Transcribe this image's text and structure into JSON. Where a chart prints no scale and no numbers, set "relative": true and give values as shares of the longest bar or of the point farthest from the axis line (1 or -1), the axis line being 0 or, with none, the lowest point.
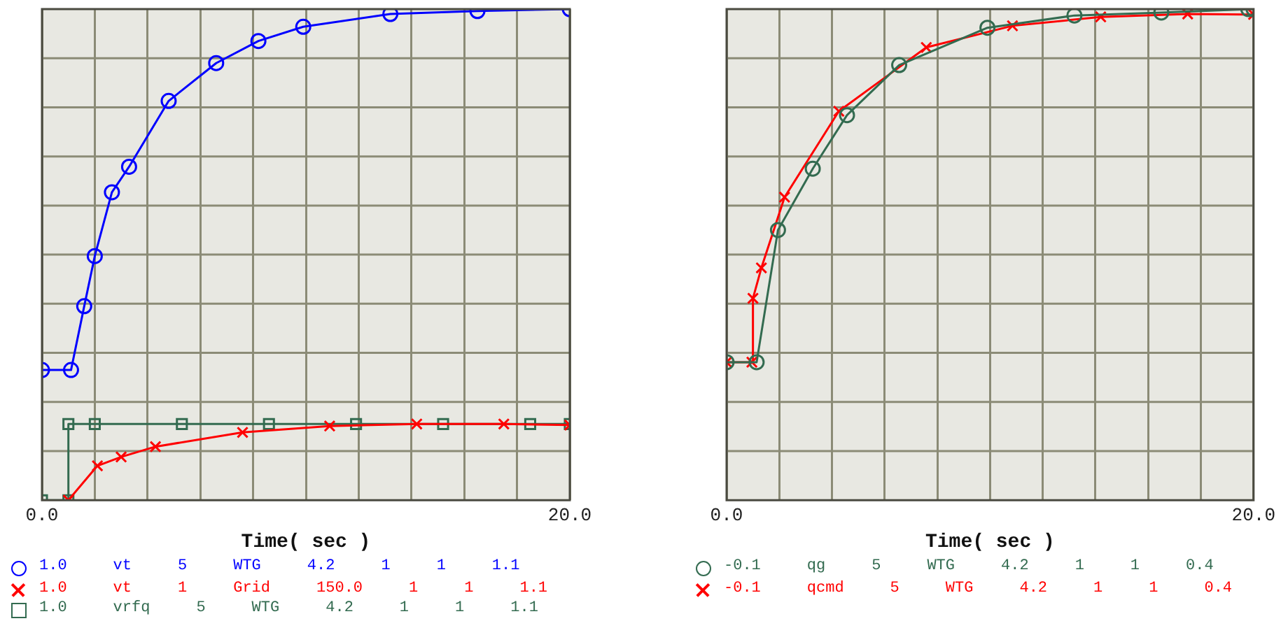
{
  "chart_data": [
    {
      "type": "line",
      "xlabel": "Time( sec )",
      "xlim": [
        0,
        20
      ],
      "xticks": [
        {
          "value": 0,
          "label": "0.0"
        },
        {
          "value": 2,
          "label": null
        },
        {
          "value": 4,
          "label": null
        },
        {
          "value": 6,
          "label": null
        },
        {
          "value": 8,
          "label": null
        },
        {
          "value": 10,
          "label": null
        },
        {
          "value": 12,
          "label": null
        },
        {
          "value": 14,
          "label": null
        },
        {
          "value": 16,
          "label": null
        },
        {
          "value": 18,
          "label": null
        },
        {
          "value": 20,
          "label": "20.0"
        }
      ],
      "relative": true,
      "grid": true,
      "legend": "bottom",
      "series": [
        {
          "name": "1.0 vt 5 WTG 4.2 1 1 1.1",
          "color": "#0000ff",
          "marker": "circle",
          "x": [
            0,
            1.1,
            1.6,
            2.0,
            2.65,
            3.3,
            4.8,
            6.6,
            8.2,
            9.9,
            13.2,
            16.5,
            20
          ],
          "values": [
            0.265,
            0.265,
            0.395,
            0.497,
            0.627,
            0.679,
            0.813,
            0.89,
            0.935,
            0.964,
            0.99,
            0.996,
            1.0
          ]
        },
        {
          "name": "1.0 vt 1 Grid 150.0 1 1 1.1",
          "color": "#ff0000",
          "marker": "cross",
          "x": [
            1.0,
            2.1,
            3.0,
            4.3,
            7.6,
            10.9,
            14.2,
            17.5,
            20
          ],
          "values": [
            0,
            0.07,
            0.088,
            0.109,
            0.138,
            0.151,
            0.155,
            0.155,
            0.153
          ]
        },
        {
          "name": "1.0 vrfq 5 WTG 4.2 1 1 1.1",
          "color": "#336b50",
          "marker": "square",
          "x": [
            0,
            1.0,
            1.0,
            2.0,
            5.3,
            8.6,
            11.9,
            15.2,
            18.5,
            20
          ],
          "values": [
            0,
            0,
            0.155,
            0.155,
            0.155,
            0.155,
            0.155,
            0.155,
            0.155,
            0.155
          ]
        }
      ]
    },
    {
      "type": "line",
      "xlabel": "Time( sec )",
      "xlim": [
        0,
        20
      ],
      "xticks": [
        {
          "value": 0,
          "label": "0.0"
        },
        {
          "value": 2,
          "label": null
        },
        {
          "value": 4,
          "label": null
        },
        {
          "value": 6,
          "label": null
        },
        {
          "value": 8,
          "label": null
        },
        {
          "value": 10,
          "label": null
        },
        {
          "value": 12,
          "label": null
        },
        {
          "value": 14,
          "label": null
        },
        {
          "value": 16,
          "label": null
        },
        {
          "value": 18,
          "label": null
        },
        {
          "value": 20,
          "label": "20.0"
        }
      ],
      "relative": true,
      "grid": true,
      "legend": "bottom",
      "series": [
        {
          "name": "-0.1 qg 5 WTG 4.2 1 1 0.4",
          "color": "#336b50",
          "marker": "circle",
          "x": [
            0,
            1.14,
            1.95,
            3.27,
            4.57,
            6.55,
            9.9,
            13.2,
            16.5,
            19.8,
            20
          ],
          "values": [
            0.281,
            0.281,
            0.55,
            0.675,
            0.784,
            0.886,
            0.962,
            0.987,
            0.993,
            1.0,
            1.0
          ]
        },
        {
          "name": "-0.1 qcmd 5 WTG 4.2 1 1 0.4",
          "color": "#ff0000",
          "marker": "cross",
          "x": [
            0,
            0.96,
            1.0,
            1.32,
            2.2,
            4.26,
            7.58,
            10.85,
            14.2,
            17.5,
            20
          ],
          "values": [
            0.281,
            0.281,
            0.411,
            0.473,
            0.617,
            0.792,
            0.922,
            0.966,
            0.984,
            0.99,
            0.989
          ]
        }
      ]
    }
  ]
}
